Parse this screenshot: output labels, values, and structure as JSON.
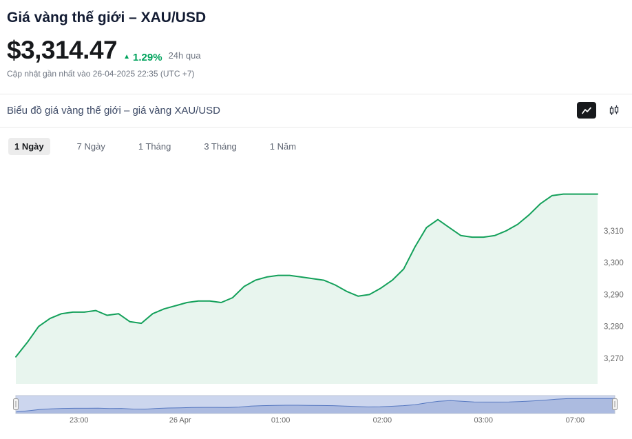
{
  "header": {
    "title": "Giá vàng thế giới – XAU/USD"
  },
  "price": {
    "value": "$3,314.47",
    "change": "1.29%",
    "direction": "up",
    "period": "24h qua",
    "updated": "Cập nhật gần nhất vào 26-04-2025 22:35 (UTC +7)"
  },
  "icons": {
    "up_arrow": "▲",
    "chart_type_line": "line-chart-icon",
    "chart_type_candle": "candlestick-icon"
  },
  "chart": {
    "header": "Biểu đồ giá vàng thế giới – giá vàng XAU/USD",
    "ranges": [
      "1 Ngày",
      "7 Ngày",
      "1 Tháng",
      "3 Tháng",
      "1 Năm"
    ],
    "active_range": "1 Ngày"
  },
  "navigator": {
    "labels": [
      "23:00",
      "26 Apr",
      "01:00",
      "02:00",
      "03:00",
      "07:00"
    ],
    "positions_pct": [
      12.5,
      28.5,
      44.4,
      60.5,
      76.5,
      91
    ]
  },
  "colors": {
    "accent_green": "#00a35c",
    "line_green": "#13a05a",
    "fill_green": "#e8f5ee",
    "navigator_line": "#5577c0",
    "navigator_mask": "#ccd6ee",
    "title_dark": "#131c33"
  },
  "chart_data": {
    "type": "area",
    "title": "Biểu đồ giá vàng thế giới – giá vàng XAU/USD",
    "series": [
      {
        "name": "XAU/USD",
        "values": [
          3270.5,
          3275,
          3280,
          3282.5,
          3284,
          3284.5,
          3284.5,
          3285,
          3283.5,
          3284,
          3281.5,
          3281,
          3284,
          3285.5,
          3286.5,
          3287.5,
          3288,
          3288,
          3287.5,
          3289,
          3292.5,
          3294.5,
          3295.5,
          3296,
          3296,
          3295.5,
          3295,
          3294.5,
          3293,
          3291,
          3289.5,
          3290,
          3292,
          3294.5,
          3298,
          3305,
          3311,
          3313.5,
          3311,
          3308.5,
          3308,
          3308,
          3308.5,
          3310,
          3312,
          3315,
          3318.5,
          3321,
          3321.5,
          3321.5,
          3321.5,
          3321.5
        ]
      }
    ],
    "x_tick_labels": [
      "23:00",
      "26 Apr",
      "01:00",
      "02:00",
      "03:00",
      "07:00"
    ],
    "y_ticks": [
      3310,
      3300,
      3290,
      3280,
      3270
    ],
    "y_tick_labels": [
      "3,310",
      "3,300",
      "3,290",
      "3,280",
      "3,270"
    ],
    "ylim": [
      3268,
      3324
    ],
    "grid": false,
    "legend": "none",
    "line_color": "#13a05a",
    "fill_color": "#e8f5ee"
  }
}
